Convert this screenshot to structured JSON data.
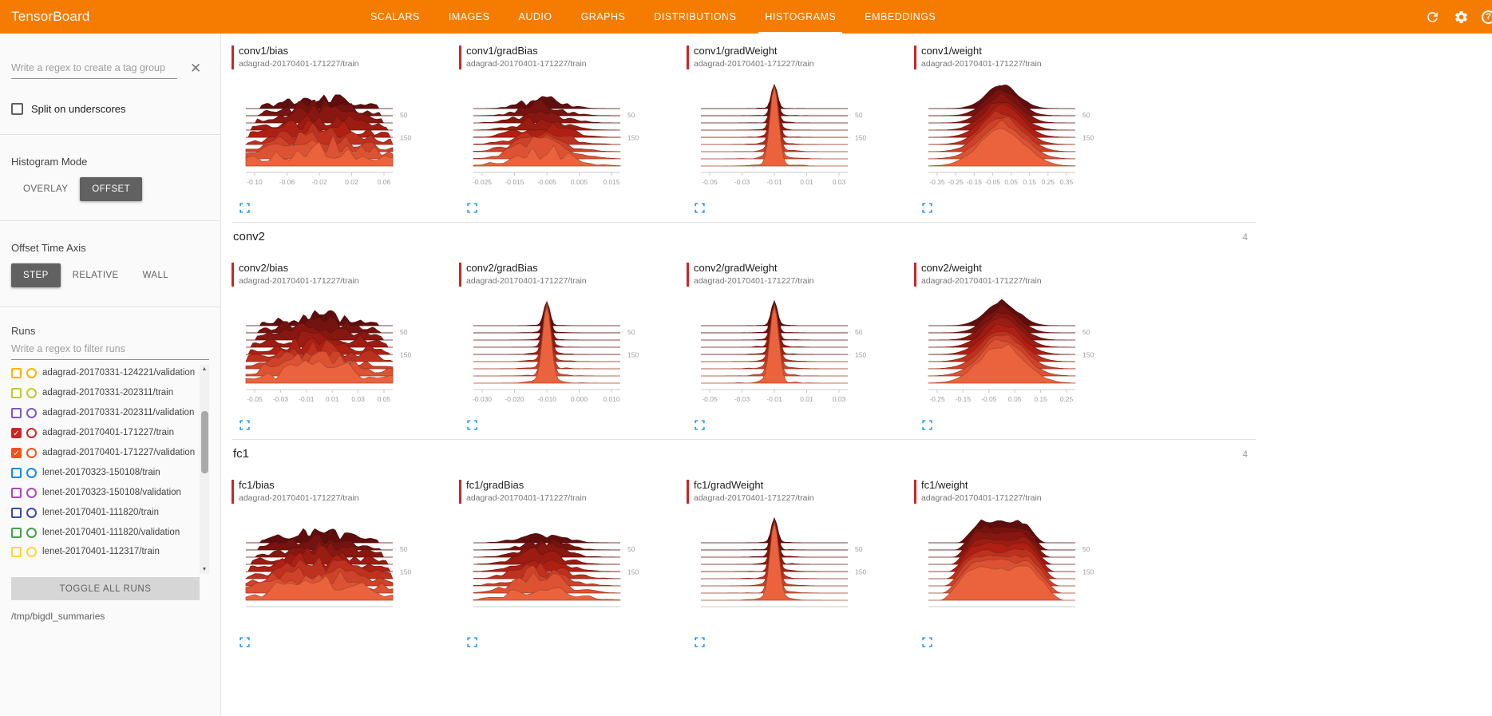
{
  "app": {
    "title": "TensorBoard"
  },
  "nav": {
    "tabs": [
      "SCALARS",
      "IMAGES",
      "AUDIO",
      "GRAPHS",
      "DISTRIBUTIONS",
      "HISTOGRAMS",
      "EMBEDDINGS"
    ],
    "active_tab": "HISTOGRAMS"
  },
  "sidebar": {
    "tag_filter_placeholder": "Write a regex to create a tag group",
    "split_on_underscores": "Split on underscores",
    "histogram_mode": {
      "label": "Histogram Mode",
      "options": [
        "OVERLAY",
        "OFFSET"
      ],
      "selected": "OFFSET"
    },
    "offset_time_axis": {
      "label": "Offset Time Axis",
      "options": [
        "STEP",
        "RELATIVE",
        "WALL"
      ],
      "selected": "STEP"
    },
    "runs": {
      "label": "Runs",
      "filter_placeholder": "Write a regex to filter runs",
      "toggle_all": "TOGGLE ALL RUNS",
      "items": [
        {
          "label": "adagrad-20170331-124221/validation",
          "checked": false,
          "color": "#ffb300"
        },
        {
          "label": "adagrad-20170331-202311/train",
          "checked": false,
          "color": "#c0ca33"
        },
        {
          "label": "adagrad-20170331-202311/validation",
          "checked": false,
          "color": "#7e57c2"
        },
        {
          "label": "adagrad-20170401-171227/train",
          "checked": true,
          "color": "#c62828"
        },
        {
          "label": "adagrad-20170401-171227/validation",
          "checked": true,
          "color": "#f4511e"
        },
        {
          "label": "lenet-20170323-150108/train",
          "checked": false,
          "color": "#1e88e5"
        },
        {
          "label": "lenet-20170323-150108/validation",
          "checked": false,
          "color": "#ab47bc"
        },
        {
          "label": "lenet-20170401-111820/train",
          "checked": false,
          "color": "#3949ab"
        },
        {
          "label": "lenet-20170401-111820/validation",
          "checked": false,
          "color": "#43a047"
        },
        {
          "label": "lenet-20170401-112317/train",
          "checked": false,
          "color": "#fdd835"
        }
      ]
    },
    "logdir": "/tmp/bigdl_summaries"
  },
  "main": {
    "run_color": "#c62828",
    "sections": [
      {
        "name": "conv1",
        "count": "4",
        "header_hidden": true,
        "cards": [
          {
            "title": "conv1/bias",
            "run": "adagrad-20170401-171227/train",
            "chart": {
              "type": "offset-histogram",
              "profile": "noisy",
              "xticks": [
                "-0.10",
                "-0.06",
                "-0.02",
                "0.02",
                "0.06"
              ],
              "yticks": [
                "50",
                "150"
              ]
            }
          },
          {
            "title": "conv1/gradBias",
            "run": "adagrad-20170401-171227/train",
            "chart": {
              "type": "offset-histogram",
              "profile": "bumpy",
              "xticks": [
                "-0.025",
                "-0.015",
                "-0.005",
                "0.005",
                "0.015"
              ],
              "yticks": [
                "50",
                "150"
              ]
            }
          },
          {
            "title": "conv1/gradWeight",
            "run": "adagrad-20170401-171227/train",
            "chart": {
              "type": "offset-histogram",
              "profile": "spike",
              "xticks": [
                "-0.05",
                "-0.03",
                "-0.01",
                "0.01",
                "0.03"
              ],
              "yticks": [
                "50",
                "150"
              ]
            }
          },
          {
            "title": "conv1/weight",
            "run": "adagrad-20170401-171227/train",
            "chart": {
              "type": "offset-histogram",
              "profile": "bell",
              "xticks": [
                "-0.35",
                "-0.25",
                "-0.15",
                "-0.05",
                "0.05",
                "0.15",
                "0.25",
                "0.35"
              ],
              "yticks": [
                "50",
                "150"
              ]
            }
          }
        ]
      },
      {
        "name": "conv2",
        "count": "4",
        "header_hidden": false,
        "cards": [
          {
            "title": "conv2/bias",
            "run": "adagrad-20170401-171227/train",
            "chart": {
              "type": "offset-histogram",
              "profile": "noisy",
              "xticks": [
                "-0.05",
                "-0.03",
                "-0.01",
                "0.01",
                "0.03",
                "0.05"
              ],
              "yticks": [
                "50",
                "150"
              ]
            }
          },
          {
            "title": "conv2/gradBias",
            "run": "adagrad-20170401-171227/train",
            "chart": {
              "type": "offset-histogram",
              "profile": "spike",
              "xticks": [
                "-0.030",
                "-0.020",
                "-0.010",
                "0.000",
                "0.010"
              ],
              "yticks": [
                "50",
                "150"
              ]
            }
          },
          {
            "title": "conv2/gradWeight",
            "run": "adagrad-20170401-171227/train",
            "chart": {
              "type": "offset-histogram",
              "profile": "spike",
              "xticks": [
                "-0.05",
                "-0.03",
                "-0.01",
                "0.01",
                "0.03"
              ],
              "yticks": [
                "50",
                "150"
              ]
            }
          },
          {
            "title": "conv2/weight",
            "run": "adagrad-20170401-171227/train",
            "chart": {
              "type": "offset-histogram",
              "profile": "bell",
              "xticks": [
                "-0.25",
                "-0.15",
                "-0.05",
                "0.05",
                "0.15",
                "0.25"
              ],
              "yticks": [
                "50",
                "150"
              ]
            }
          }
        ]
      },
      {
        "name": "fc1",
        "count": "4",
        "header_hidden": false,
        "cards": [
          {
            "title": "fc1/bias",
            "run": "adagrad-20170401-171227/train",
            "chart": {
              "type": "offset-histogram",
              "profile": "noisy",
              "xticks": [],
              "yticks": [
                "50",
                "150"
              ]
            }
          },
          {
            "title": "fc1/gradBias",
            "run": "adagrad-20170401-171227/train",
            "chart": {
              "type": "offset-histogram",
              "profile": "bumpy",
              "xticks": [],
              "yticks": [
                "50",
                "150"
              ]
            }
          },
          {
            "title": "fc1/gradWeight",
            "run": "adagrad-20170401-171227/train",
            "chart": {
              "type": "offset-histogram",
              "profile": "spike",
              "xticks": [],
              "yticks": [
                "50",
                "150"
              ]
            }
          },
          {
            "title": "fc1/weight",
            "run": "adagrad-20170401-171227/train",
            "chart": {
              "type": "offset-histogram",
              "profile": "plateau",
              "xticks": [],
              "yticks": [
                "50",
                "150"
              ]
            }
          }
        ]
      }
    ]
  }
}
